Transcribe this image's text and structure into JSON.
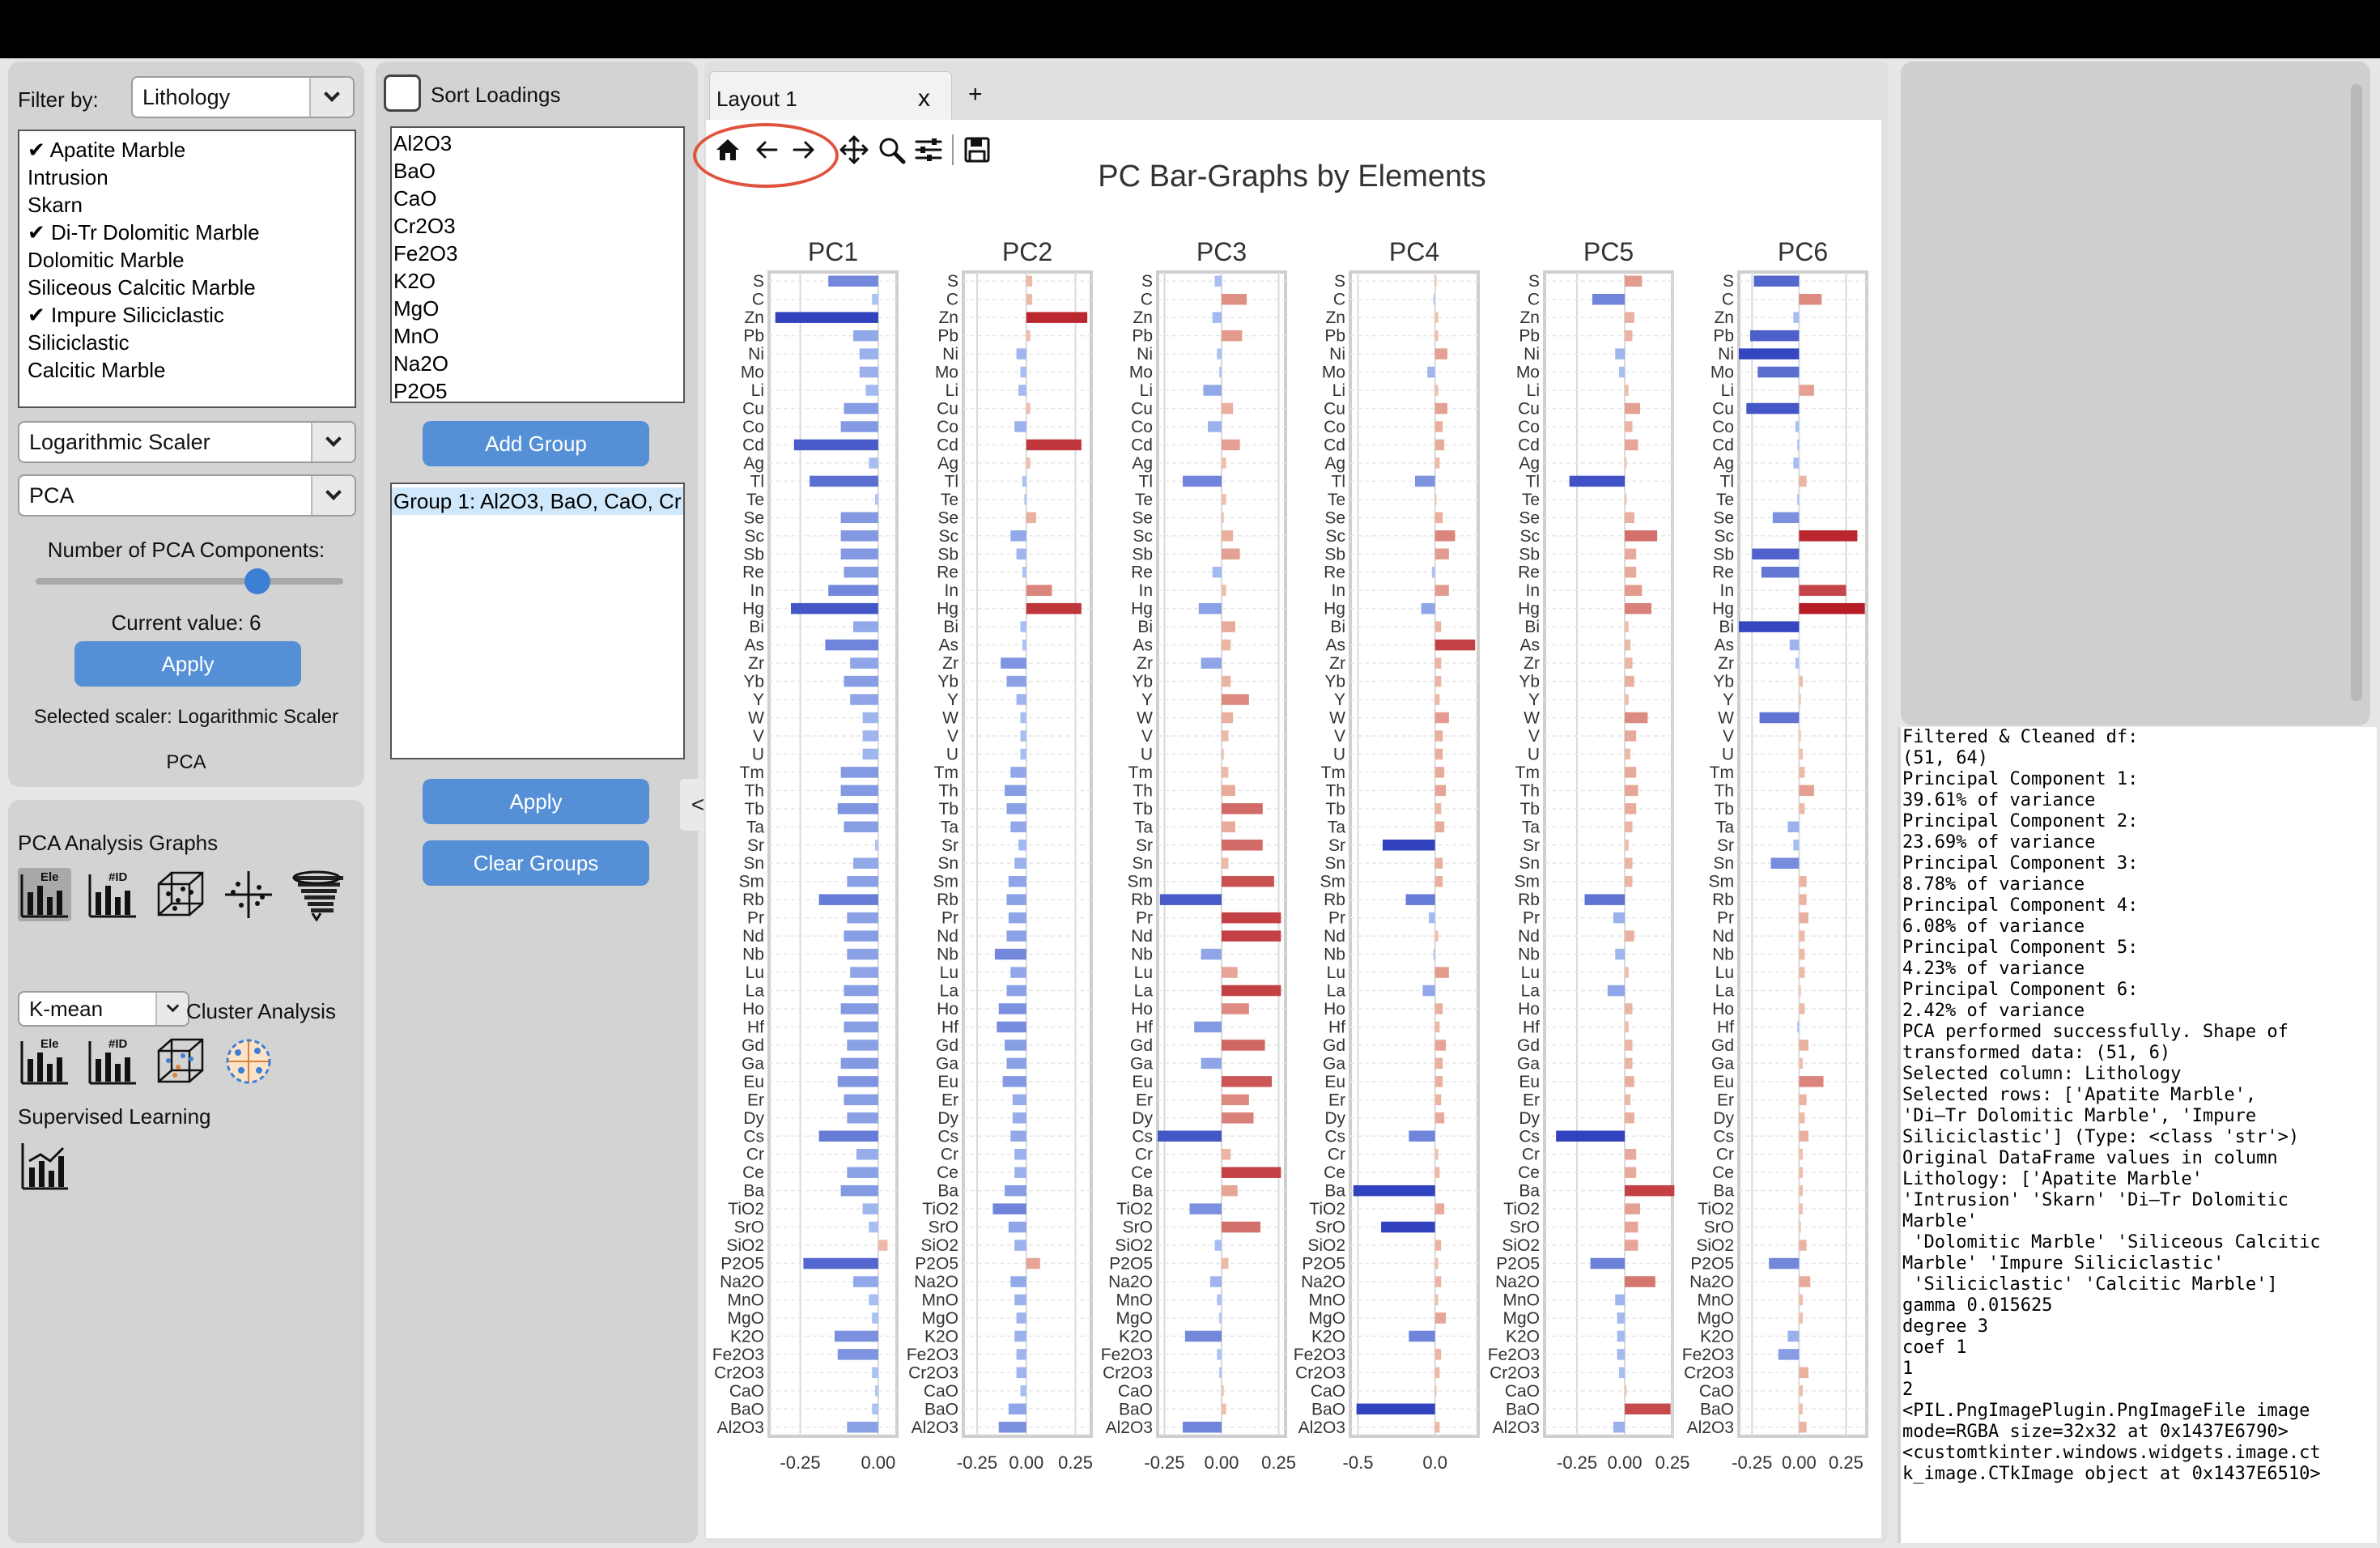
{
  "filter": {
    "label": "Filter by:",
    "selected": "Lithology"
  },
  "lithology_list": [
    {
      "label": "Apatite Marble",
      "checked": true
    },
    {
      "label": "Intrusion",
      "checked": false
    },
    {
      "label": "Skarn",
      "checked": false
    },
    {
      "label": "Di-Tr Dolomitic Marble",
      "checked": true
    },
    {
      "label": "Dolomitic Marble",
      "checked": false
    },
    {
      "label": "Siliceous Calcitic Marble",
      "checked": false
    },
    {
      "label": "Impure Siliciclastic",
      "checked": true
    },
    {
      "label": "Siliciclastic",
      "checked": false
    },
    {
      "label": "Calcitic Marble",
      "checked": false
    }
  ],
  "scaler_select": "Logarithmic Scaler",
  "method_select": "PCA",
  "components": {
    "label": "Number of PCA Components:",
    "value_text": "Current value: 6",
    "fraction": 0.72
  },
  "apply_label": "Apply",
  "selected_scaler_text": "Selected scaler: Logarithmic Scaler",
  "method_text": "PCA",
  "sort_loadings": {
    "label": "Sort Loadings",
    "checked": false
  },
  "oxide_list": [
    "Al2O3",
    "BaO",
    "CaO",
    "Cr2O3",
    "Fe2O3",
    "K2O",
    "MgO",
    "MnO",
    "Na2O",
    "P2O5"
  ],
  "add_group_label": "Add Group",
  "group_list": [
    "Group 1: Al2O3, BaO, CaO, Cr"
  ],
  "apply_groups_label": "Apply",
  "clear_groups_label": "Clear Groups",
  "collapse_label": "<",
  "pca_graphs_label": "PCA Analysis Graphs",
  "pca_icons": [
    {
      "name": "element-bar-chart-icon",
      "text": "Ele"
    },
    {
      "name": "id-bar-chart-icon",
      "text": "#ID"
    },
    {
      "name": "scatter-cube-icon",
      "text": ""
    },
    {
      "name": "biplot-crosshair-icon",
      "text": ""
    },
    {
      "name": "scree-tornado-icon",
      "text": ""
    }
  ],
  "cluster_select": "K-mean",
  "cluster_label": "Cluster Analysis",
  "cluster_icons": [
    {
      "name": "cluster-element-bar-icon",
      "text": "Ele"
    },
    {
      "name": "cluster-id-bar-icon",
      "text": "#ID"
    },
    {
      "name": "cluster-cube-icon",
      "text": ""
    },
    {
      "name": "cluster-map-icon",
      "text": ""
    }
  ],
  "supervised_label": "Supervised Learning",
  "tabs": [
    {
      "label": "Layout 1",
      "close": "x"
    }
  ],
  "add_tab_label": "+",
  "toolbar": [
    "home-icon",
    "back-arrow-icon",
    "forward-arrow-icon",
    "pan-icon",
    "zoom-icon",
    "configure-icon",
    "save-icon"
  ],
  "highlight_color": "#e0533c",
  "console_lines": [
    "Filtered & Cleaned df:",
    "(51, 64)",
    "Principal Component 1:",
    "39.61% of variance",
    "Principal Component 2:",
    "23.69% of variance",
    "Principal Component 3:",
    "8.78% of variance",
    "Principal Component 4:",
    "6.08% of variance",
    "Principal Component 5:",
    "4.23% of variance",
    "Principal Component 6:",
    "2.42% of variance",
    "PCA performed successfully. Shape of",
    "transformed data: (51, 6)",
    "Selected column: Lithology",
    "Selected rows: ['Apatite Marble',",
    "'Di–Tr Dolomitic Marble', 'Impure",
    "Siliciclastic'] (Type: <class 'str'>)",
    "Original DataFrame values in column",
    "Lithology: ['Apatite Marble'",
    "'Intrusion' 'Skarn' 'Di–Tr Dolomitic",
    "Marble'",
    " 'Dolomitic Marble' 'Siliceous Calcitic",
    "Marble' 'Impure Siliciclastic'",
    " 'Siliciclastic' 'Calcitic Marble']",
    "gamma 0.015625",
    "degree 3",
    "coef 1",
    "1",
    "2",
    "<PIL.PngImagePlugin.PngImageFile image",
    "mode=RGBA size=32x32 at 0x1437E6790>",
    "<customtkinter.windows.widgets.image.ct",
    "k_image.CTkImage object at 0x1437E6510>"
  ],
  "chart_data": {
    "type": "bar",
    "orientation": "horizontal",
    "title": "PC Bar-Graphs by Elements",
    "categories": [
      "S",
      "C",
      "Zn",
      "Pb",
      "Ni",
      "Mo",
      "Li",
      "Cu",
      "Co",
      "Cd",
      "Ag",
      "Tl",
      "Te",
      "Se",
      "Sc",
      "Sb",
      "Re",
      "In",
      "Hg",
      "Bi",
      "As",
      "Zr",
      "Yb",
      "Y",
      "W",
      "V",
      "U",
      "Tm",
      "Th",
      "Tb",
      "Ta",
      "Sr",
      "Sn",
      "Sm",
      "Rb",
      "Pr",
      "Nd",
      "Nb",
      "Lu",
      "La",
      "Ho",
      "Hf",
      "Gd",
      "Ga",
      "Eu",
      "Er",
      "Dy",
      "Cs",
      "Cr",
      "Ce",
      "Ba",
      "TiO2",
      "SrO",
      "SiO2",
      "P2O5",
      "Na2O",
      "MnO",
      "MgO",
      "K2O",
      "Fe2O3",
      "Cr2O3",
      "CaO",
      "BaO",
      "Al2O3"
    ],
    "series": [
      {
        "name": "PC1",
        "xlim": [
          -0.35,
          0.06
        ],
        "xticks": [
          "-0.25",
          "0.00"
        ],
        "values": [
          -0.16,
          -0.02,
          -0.33,
          -0.08,
          -0.06,
          -0.06,
          -0.04,
          -0.11,
          -0.12,
          -0.27,
          -0.03,
          -0.22,
          -0.01,
          -0.12,
          -0.12,
          -0.12,
          -0.11,
          -0.16,
          -0.28,
          -0.08,
          -0.17,
          -0.09,
          -0.11,
          -0.09,
          -0.05,
          -0.05,
          -0.05,
          -0.12,
          -0.12,
          -0.13,
          -0.11,
          -0.01,
          -0.08,
          -0.1,
          -0.19,
          -0.1,
          -0.11,
          -0.1,
          -0.09,
          -0.11,
          -0.12,
          -0.11,
          -0.1,
          -0.12,
          -0.13,
          -0.11,
          -0.1,
          -0.19,
          -0.07,
          -0.1,
          -0.12,
          -0.05,
          -0.03,
          0.03,
          -0.24,
          -0.08,
          -0.03,
          -0.02,
          -0.14,
          -0.13,
          -0.02,
          -0.01,
          -0.02,
          -0.1
        ]
      },
      {
        "name": "PC2",
        "xlim": [
          -0.32,
          0.33
        ],
        "xticks": [
          "-0.25",
          "0.00",
          "0.25"
        ],
        "values": [
          0.03,
          0.03,
          0.31,
          0.02,
          -0.05,
          -0.03,
          -0.04,
          0.02,
          -0.06,
          0.28,
          0.02,
          -0.02,
          -0.01,
          0.05,
          -0.08,
          -0.05,
          -0.02,
          0.13,
          0.28,
          -0.03,
          -0.02,
          -0.13,
          -0.1,
          -0.05,
          -0.03,
          -0.03,
          -0.03,
          -0.08,
          -0.11,
          -0.1,
          -0.08,
          -0.04,
          -0.06,
          -0.09,
          -0.1,
          -0.09,
          -0.1,
          -0.16,
          -0.08,
          -0.1,
          -0.14,
          -0.15,
          -0.11,
          -0.1,
          -0.12,
          -0.07,
          -0.07,
          -0.08,
          -0.06,
          -0.06,
          -0.11,
          -0.17,
          -0.09,
          -0.06,
          0.07,
          -0.08,
          -0.06,
          -0.05,
          -0.06,
          -0.05,
          -0.05,
          -0.03,
          -0.09,
          -0.14
        ]
      },
      {
        "name": "PC3",
        "xlim": [
          -0.28,
          0.28
        ],
        "xticks": [
          "-0.25",
          "0.00",
          "0.25"
        ],
        "values": [
          -0.03,
          0.11,
          -0.04,
          0.09,
          -0.02,
          -0.01,
          -0.08,
          0.05,
          -0.06,
          0.08,
          0.02,
          -0.17,
          0.02,
          0.01,
          0.05,
          0.08,
          -0.04,
          0.02,
          -0.1,
          0.06,
          0.04,
          -0.09,
          0.04,
          0.12,
          0.05,
          0.03,
          0.01,
          0.03,
          0.06,
          0.18,
          0.06,
          0.18,
          0.03,
          0.23,
          -0.27,
          0.26,
          0.26,
          -0.09,
          0.07,
          0.26,
          0.12,
          -0.12,
          0.19,
          -0.09,
          0.22,
          0.12,
          0.14,
          -0.28,
          0.04,
          0.26,
          0.07,
          -0.14,
          0.17,
          -0.03,
          0.03,
          -0.05,
          -0.02,
          -0.01,
          -0.16,
          -0.02,
          -0.01,
          0.01,
          0.02,
          -0.17
        ]
      },
      {
        "name": "PC4",
        "xlim": [
          -0.55,
          0.28
        ],
        "xticks": [
          "-0.5",
          "0.0"
        ],
        "values": [
          0.01,
          -0.01,
          0.02,
          0.02,
          0.08,
          -0.05,
          0.02,
          0.08,
          0.05,
          0.06,
          0.03,
          -0.13,
          0.01,
          0.05,
          0.13,
          0.09,
          -0.02,
          0.09,
          -0.09,
          0.04,
          0.26,
          0.04,
          0.04,
          0.03,
          0.09,
          0.05,
          0.05,
          0.06,
          0.07,
          0.04,
          0.06,
          -0.34,
          0.05,
          0.05,
          -0.19,
          -0.04,
          0.02,
          -0.01,
          0.09,
          -0.08,
          0.05,
          0.03,
          0.07,
          0.05,
          0.05,
          0.04,
          0.06,
          -0.17,
          0.02,
          0.03,
          -0.53,
          0.06,
          -0.35,
          0.04,
          0.02,
          0.04,
          0.02,
          0.07,
          -0.17,
          0.04,
          0.03,
          0.01,
          -0.51,
          0.03
        ]
      },
      {
        "name": "PC5",
        "xlim": [
          -0.42,
          0.25
        ],
        "xticks": [
          "-0.25",
          "0.00",
          "0.25"
        ],
        "values": [
          0.09,
          -0.17,
          0.05,
          0.04,
          -0.05,
          -0.03,
          0.02,
          0.08,
          0.04,
          0.07,
          0.01,
          -0.29,
          0.01,
          0.05,
          0.17,
          0.06,
          0.06,
          0.09,
          0.14,
          0.02,
          0.03,
          0.04,
          0.05,
          0.02,
          0.12,
          0.06,
          0.03,
          0.06,
          0.07,
          0.06,
          0.04,
          0.02,
          0.04,
          0.04,
          -0.21,
          -0.06,
          0.05,
          -0.05,
          0.02,
          -0.09,
          0.04,
          0.02,
          0.04,
          0.04,
          0.05,
          0.03,
          0.05,
          -0.36,
          0.06,
          0.06,
          0.26,
          0.08,
          0.07,
          0.07,
          -0.18,
          0.16,
          -0.05,
          -0.04,
          -0.04,
          -0.04,
          -0.03,
          0.01,
          0.24,
          -0.06
        ]
      },
      {
        "name": "PC6",
        "xlim": [
          -0.32,
          0.36
        ],
        "xticks": [
          "-0.25",
          "0.00",
          "0.25"
        ],
        "values": [
          -0.24,
          0.12,
          -0.03,
          -0.26,
          -0.32,
          -0.22,
          0.08,
          -0.28,
          -0.02,
          -0.01,
          -0.03,
          0.04,
          -0.01,
          -0.14,
          0.31,
          -0.25,
          -0.2,
          0.25,
          0.35,
          -0.32,
          -0.05,
          -0.02,
          0.02,
          0.01,
          -0.21,
          0.01,
          0.02,
          0.03,
          0.08,
          0.03,
          -0.06,
          -0.03,
          -0.15,
          0.04,
          0.04,
          0.05,
          0.03,
          0.03,
          0.03,
          0.01,
          0.03,
          -0.01,
          0.05,
          0.02,
          0.13,
          0.04,
          0.03,
          0.05,
          0.02,
          0.02,
          0.02,
          0.02,
          0.01,
          0.04,
          -0.16,
          0.06,
          0.02,
          0.02,
          -0.06,
          -0.11,
          0.05,
          0.02,
          0.02,
          0.04
        ]
      }
    ],
    "grid": true
  }
}
